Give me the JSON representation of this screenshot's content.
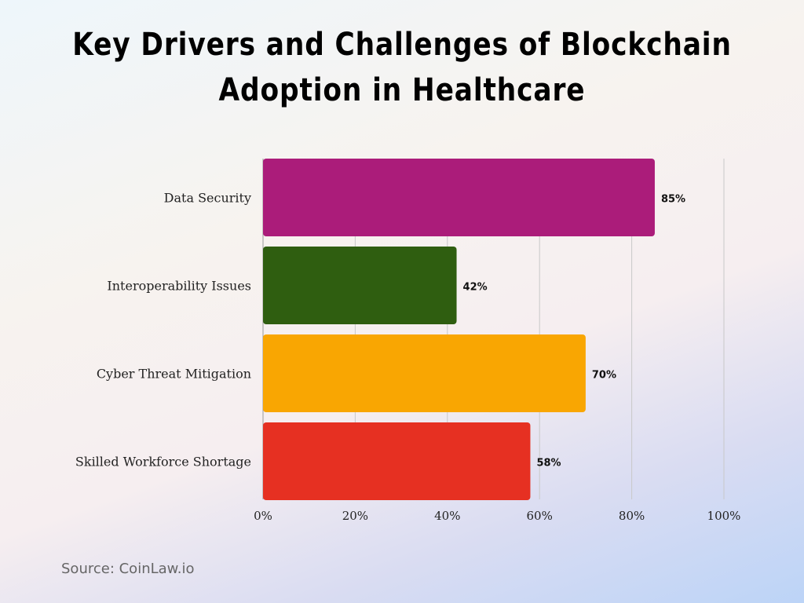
{
  "title": "Key Drivers and Challenges of Blockchain Adoption in Healthcare",
  "source": "Source: CoinLaw.io",
  "chart_data": {
    "type": "bar",
    "orientation": "horizontal",
    "title": "Key Drivers and Challenges of Blockchain Adoption in Healthcare",
    "categories": [
      "Data Security",
      "Interoperability Issues",
      "Cyber Threat Mitigation",
      "Skilled Workforce Shortage"
    ],
    "values": [
      85,
      42,
      70,
      58
    ],
    "data_labels": [
      "85%",
      "42%",
      "70%",
      "58%"
    ],
    "colors": [
      "#ab1c7a",
      "#2f5e10",
      "#f9a602",
      "#e63022"
    ],
    "xlim": [
      0,
      100
    ],
    "xticks": [
      "0%",
      "20%",
      "40%",
      "60%",
      "80%",
      "100%"
    ],
    "grid": true
  }
}
